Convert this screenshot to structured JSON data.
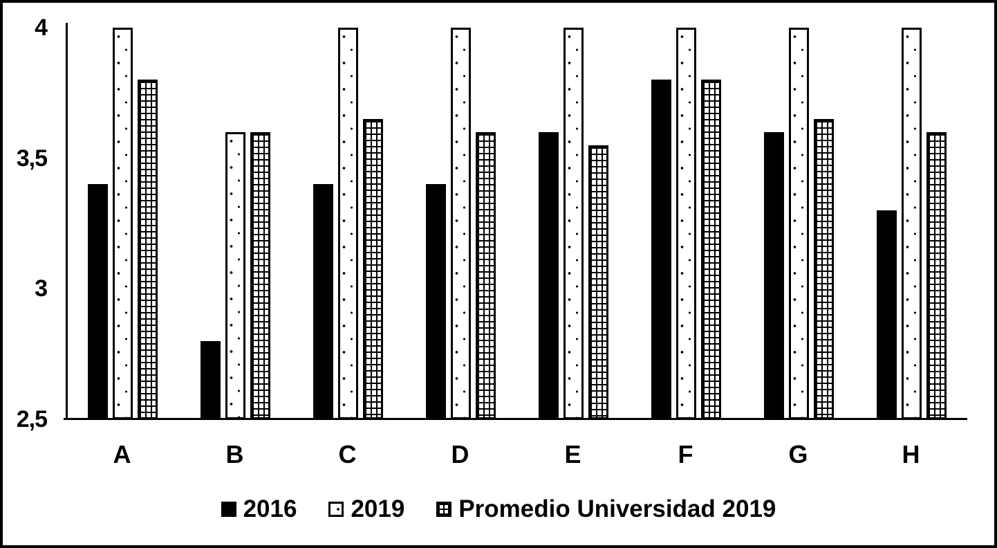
{
  "chart_data": {
    "type": "bar",
    "title": "",
    "categories": [
      "A",
      "B",
      "C",
      "D",
      "E",
      "F",
      "G",
      "H"
    ],
    "series": [
      {
        "name": "2016",
        "pattern": "solid-black",
        "values": [
          3.4,
          2.8,
          3.4,
          3.4,
          3.6,
          3.8,
          3.6,
          3.3
        ]
      },
      {
        "name": "2019",
        "pattern": "dotted",
        "values": [
          4.0,
          3.6,
          4.0,
          4.0,
          4.0,
          4.0,
          4.0,
          4.0
        ]
      },
      {
        "name": "Promedio Universidad 2019",
        "pattern": "grid",
        "values": [
          3.8,
          3.6,
          3.65,
          3.6,
          3.55,
          3.8,
          3.65,
          3.6
        ]
      }
    ],
    "ylim": [
      2.5,
      4.0
    ],
    "yticks": [
      {
        "value": 4.0,
        "label": "4"
      },
      {
        "value": 3.5,
        "label": "3,5"
      },
      {
        "value": 3.0,
        "label": "3"
      },
      {
        "value": 2.5,
        "label": "2,5"
      }
    ],
    "xlabel": "",
    "ylabel": "",
    "grid": false,
    "legend_position": "bottom",
    "colors": {
      "foreground": "#000000",
      "background": "#ffffff"
    }
  },
  "legend": {
    "items": [
      {
        "label": "2016",
        "marker": "solid-black"
      },
      {
        "label": "2019",
        "marker": "dotted"
      },
      {
        "label": "Promedio Universidad 2019",
        "marker": "grid"
      }
    ]
  }
}
